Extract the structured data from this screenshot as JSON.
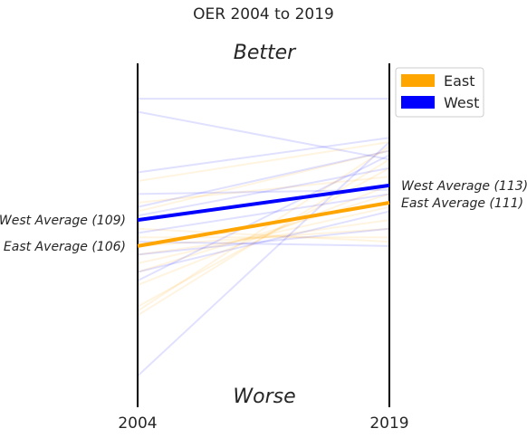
{
  "chart_data": {
    "type": "line",
    "title": "OER 2004 to 2019",
    "top_label": "Better",
    "bottom_label": "Worse",
    "x": [
      "2004",
      "2019"
    ],
    "ylim": [
      90,
      125
    ],
    "grid": false,
    "legend_position": "top-right",
    "legend": [
      {
        "name": "East",
        "color": "#FFA500"
      },
      {
        "name": "West",
        "color": "#0000FF"
      }
    ],
    "averages": [
      {
        "name": "West",
        "color": "#0000FF",
        "values": [
          109,
          113
        ],
        "label_start": "West Average (109)",
        "label_end": "West Average (113)"
      },
      {
        "name": "East",
        "color": "#FFA500",
        "values": [
          106,
          111
        ],
        "label_start": "East Average (106)",
        "label_end": "East Average (111)"
      }
    ],
    "teams": [
      {
        "group": "East",
        "values": [
          98.5,
          117.5
        ]
      },
      {
        "group": "East",
        "values": [
          98,
          116
        ]
      },
      {
        "group": "East",
        "values": [
          99,
          115
        ]
      },
      {
        "group": "East",
        "values": [
          101.5,
          113
        ]
      },
      {
        "group": "East",
        "values": [
          103,
          112
        ]
      },
      {
        "group": "East",
        "values": [
          104,
          110.5
        ]
      },
      {
        "group": "East",
        "values": [
          105,
          109
        ]
      },
      {
        "group": "East",
        "values": [
          106,
          108
        ]
      },
      {
        "group": "East",
        "values": [
          107,
          107
        ]
      },
      {
        "group": "East",
        "values": [
          108,
          106.5
        ]
      },
      {
        "group": "East",
        "values": [
          110,
          117
        ]
      },
      {
        "group": "East",
        "values": [
          111,
          114
        ]
      },
      {
        "group": "East",
        "values": [
          113.5,
          118
        ]
      },
      {
        "group": "West",
        "values": [
          91,
          118
        ]
      },
      {
        "group": "West",
        "values": [
          102,
          116.5
        ]
      },
      {
        "group": "West",
        "values": [
          103,
          110
        ]
      },
      {
        "group": "West",
        "values": [
          105,
          108
        ]
      },
      {
        "group": "West",
        "values": [
          106.5,
          106
        ]
      },
      {
        "group": "West",
        "values": [
          107.5,
          112
        ]
      },
      {
        "group": "West",
        "values": [
          109.5,
          115
        ]
      },
      {
        "group": "West",
        "values": [
          110.5,
          117
        ]
      },
      {
        "group": "West",
        "values": [
          112,
          112.5
        ]
      },
      {
        "group": "West",
        "values": [
          114.5,
          118.5
        ]
      },
      {
        "group": "West",
        "values": [
          121.5,
          116
        ]
      },
      {
        "group": "West",
        "values": [
          123,
          123
        ]
      }
    ]
  }
}
